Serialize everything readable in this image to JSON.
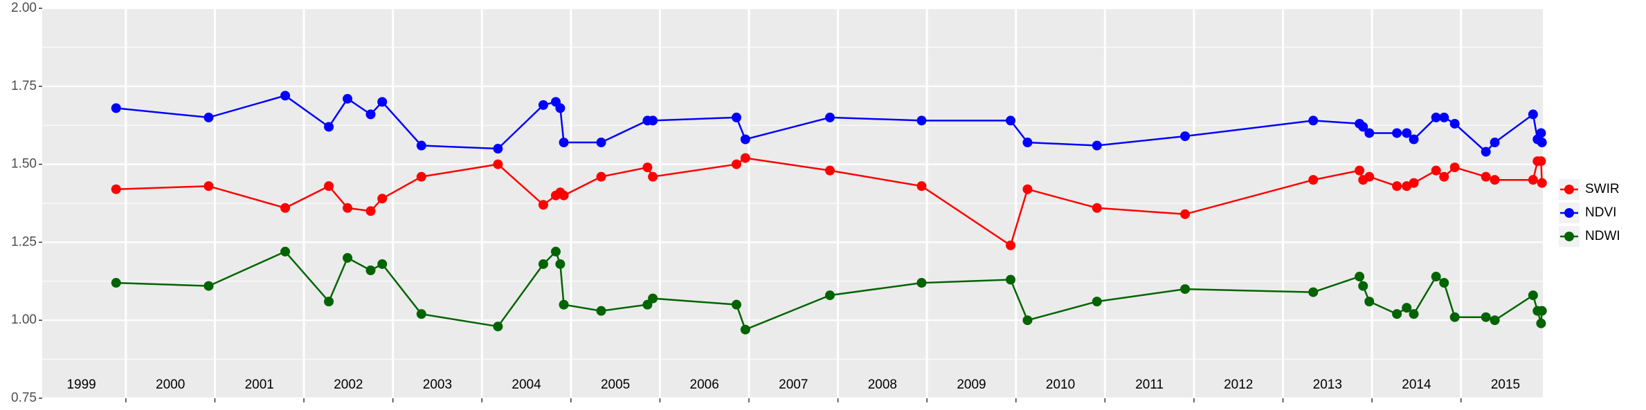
{
  "chart_data": {
    "type": "line",
    "x": [
      1999.89,
      2000.93,
      2001.79,
      2002.28,
      2002.49,
      2002.75,
      2002.88,
      2003.32,
      2004.18,
      2004.69,
      2004.83,
      2004.88,
      2004.92,
      2005.34,
      2005.86,
      2005.92,
      2006.86,
      2006.96,
      2007.91,
      2008.94,
      2009.94,
      2010.13,
      2010.91,
      2011.9,
      2013.34,
      2013.86,
      2013.9,
      2013.97,
      2014.28,
      2014.39,
      2014.47,
      2014.72,
      2014.81,
      2014.93,
      2015.28,
      2015.38,
      2015.81,
      2015.86,
      2015.9,
      2015.91
    ],
    "series": [
      {
        "name": "SWIR",
        "color": "#ff0000",
        "values": [
          1.42,
          1.43,
          1.36,
          1.43,
          1.36,
          1.35,
          1.39,
          1.46,
          1.5,
          1.37,
          1.4,
          1.41,
          1.4,
          1.46,
          1.49,
          1.46,
          1.5,
          1.52,
          1.48,
          1.43,
          1.24,
          1.42,
          1.36,
          1.34,
          1.45,
          1.48,
          1.45,
          1.46,
          1.43,
          1.43,
          1.44,
          1.48,
          1.46,
          1.49,
          1.46,
          1.45,
          1.45,
          1.51,
          1.51,
          1.44
        ]
      },
      {
        "name": "NDVI",
        "color": "#0000ff",
        "values": [
          1.68,
          1.65,
          1.72,
          1.62,
          1.71,
          1.66,
          1.7,
          1.56,
          1.55,
          1.69,
          1.7,
          1.68,
          1.57,
          1.57,
          1.64,
          1.64,
          1.65,
          1.58,
          1.65,
          1.64,
          1.64,
          1.57,
          1.56,
          1.59,
          1.64,
          1.63,
          1.62,
          1.6,
          1.6,
          1.6,
          1.58,
          1.65,
          1.65,
          1.63,
          1.54,
          1.57,
          1.66,
          1.58,
          1.6,
          1.57
        ]
      },
      {
        "name": "NDWI",
        "color": "#006400",
        "values": [
          1.12,
          1.11,
          1.22,
          1.06,
          1.2,
          1.16,
          1.18,
          1.02,
          0.98,
          1.18,
          1.22,
          1.18,
          1.05,
          1.03,
          1.05,
          1.07,
          1.05,
          0.97,
          1.08,
          1.12,
          1.13,
          1.0,
          1.06,
          1.1,
          1.09,
          1.14,
          1.11,
          1.06,
          1.02,
          1.04,
          1.02,
          1.14,
          1.12,
          1.01,
          1.01,
          1.0,
          1.08,
          1.03,
          0.99,
          1.03
        ]
      }
    ],
    "xlim": [
      1999.06,
      2015.92
    ],
    "xticks": [
      {
        "value": 1999.5,
        "label": "1999"
      },
      {
        "value": 2000.5,
        "label": "2000"
      },
      {
        "value": 2001.5,
        "label": "2001"
      },
      {
        "value": 2002.5,
        "label": "2002"
      },
      {
        "value": 2003.5,
        "label": "2003"
      },
      {
        "value": 2004.5,
        "label": "2004"
      },
      {
        "value": 2005.5,
        "label": "2005"
      },
      {
        "value": 2006.5,
        "label": "2006"
      },
      {
        "value": 2007.5,
        "label": "2007"
      },
      {
        "value": 2008.5,
        "label": "2008"
      },
      {
        "value": 2009.5,
        "label": "2009"
      },
      {
        "value": 2010.5,
        "label": "2010"
      },
      {
        "value": 2011.5,
        "label": "2011"
      },
      {
        "value": 2012.5,
        "label": "2012"
      },
      {
        "value": 2013.5,
        "label": "2013"
      },
      {
        "value": 2014.5,
        "label": "2014"
      },
      {
        "value": 2015.5,
        "label": "2015"
      }
    ],
    "xgrid": [
      2000,
      2001,
      2002,
      2003,
      2004,
      2005,
      2006,
      2007,
      2008,
      2009,
      2010,
      2011,
      2012,
      2013,
      2014,
      2015
    ],
    "ylim": [
      0.75,
      2.0
    ],
    "yticks": [
      {
        "value": 0.75,
        "label": "0.75"
      },
      {
        "value": 1.0,
        "label": "1.00"
      },
      {
        "value": 1.25,
        "label": "1.25"
      },
      {
        "value": 1.5,
        "label": "1.50"
      },
      {
        "value": 1.75,
        "label": "1.75"
      },
      {
        "value": 2.0,
        "label": "2.00"
      }
    ],
    "grid": true,
    "legend": "right"
  }
}
